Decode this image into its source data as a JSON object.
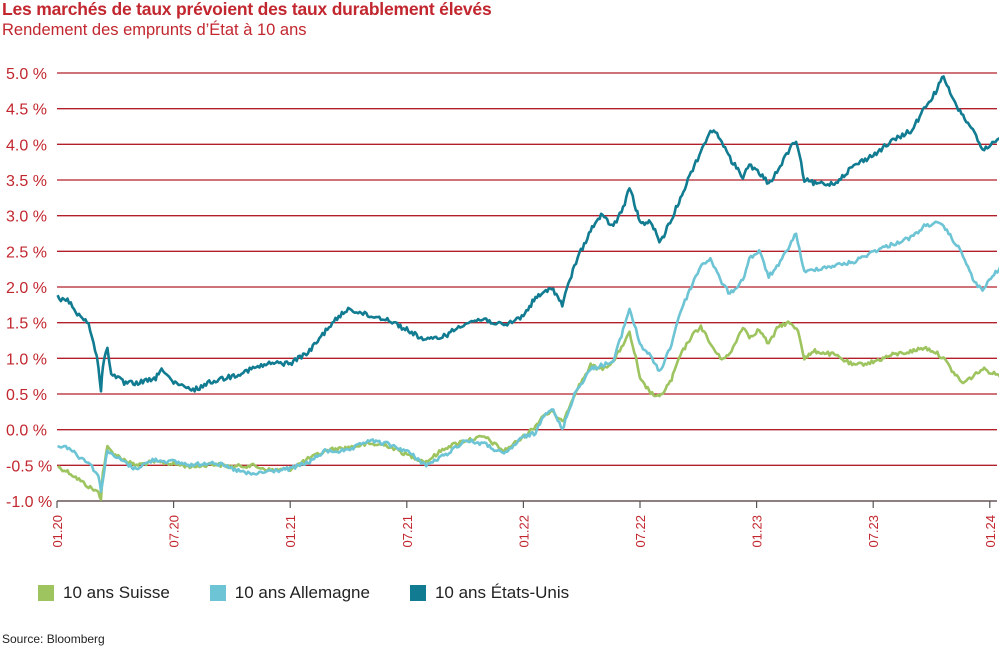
{
  "title": "Les marchés de taux prévoient des taux durablement élevés",
  "subtitle": "Rendement des emprunts d’État à 10 ans",
  "source": "Source: Bloomberg",
  "colors": {
    "title": "#c2262e",
    "grid": "#b21f2a",
    "axis_text": "#c2262e"
  },
  "chart_data": {
    "type": "line",
    "ylim": [
      -1.0,
      5.0
    ],
    "yticks": [
      -1.0,
      -0.5,
      0.0,
      0.5,
      1.0,
      1.5,
      2.0,
      2.5,
      3.0,
      3.5,
      4.0,
      4.5,
      5.0
    ],
    "ytick_labels": [
      "-1.0 %",
      "-0.5 %",
      "0.0 %",
      "0.5 %",
      "1.0 %",
      "1.5 %",
      "2.0 %",
      "2.5 %",
      "3.0 %",
      "3.5 %",
      "4.0 %",
      "4.5 %",
      "5.0 %"
    ],
    "xlim": [
      "2020-01",
      "2024-02"
    ],
    "xticks": [
      "2020-01",
      "2020-07",
      "2021-01",
      "2021-07",
      "2022-01",
      "2022-07",
      "2023-01",
      "2023-07",
      "2024-01"
    ],
    "xtick_labels": [
      "01.20",
      "07.20",
      "01.21",
      "07.21",
      "01.22",
      "07.22",
      "01.23",
      "07.23",
      "01.24"
    ],
    "legend_position": "bottom-left",
    "series": [
      {
        "name": "10 ans Suisse",
        "color": "#9dc45f",
        "points": [
          [
            "2020-01-02",
            -0.52
          ],
          [
            "2020-01-20",
            -0.6
          ],
          [
            "2020-02-05",
            -0.7
          ],
          [
            "2020-02-20",
            -0.8
          ],
          [
            "2020-03-05",
            -0.88
          ],
          [
            "2020-03-09",
            -0.96
          ],
          [
            "2020-03-12",
            -0.6
          ],
          [
            "2020-03-19",
            -0.25
          ],
          [
            "2020-04-01",
            -0.35
          ],
          [
            "2020-04-15",
            -0.42
          ],
          [
            "2020-05-01",
            -0.5
          ],
          [
            "2020-06-01",
            -0.45
          ],
          [
            "2020-07-01",
            -0.48
          ],
          [
            "2020-08-01",
            -0.52
          ],
          [
            "2020-09-01",
            -0.48
          ],
          [
            "2020-10-01",
            -0.52
          ],
          [
            "2020-11-01",
            -0.5
          ],
          [
            "2020-12-01",
            -0.57
          ],
          [
            "2021-01-01",
            -0.55
          ],
          [
            "2021-02-01",
            -0.4
          ],
          [
            "2021-03-01",
            -0.28
          ],
          [
            "2021-04-01",
            -0.25
          ],
          [
            "2021-05-01",
            -0.2
          ],
          [
            "2021-06-01",
            -0.22
          ],
          [
            "2021-07-01",
            -0.35
          ],
          [
            "2021-08-01",
            -0.45
          ],
          [
            "2021-09-01",
            -0.25
          ],
          [
            "2021-10-01",
            -0.15
          ],
          [
            "2021-11-01",
            -0.1
          ],
          [
            "2021-12-01",
            -0.3
          ],
          [
            "2022-01-01",
            -0.1
          ],
          [
            "2022-01-20",
            0.05
          ],
          [
            "2022-02-01",
            0.2
          ],
          [
            "2022-02-15",
            0.25
          ],
          [
            "2022-03-01",
            0.1
          ],
          [
            "2022-03-20",
            0.5
          ],
          [
            "2022-04-15",
            0.9
          ],
          [
            "2022-05-01",
            0.85
          ],
          [
            "2022-05-20",
            0.95
          ],
          [
            "2022-06-05",
            1.2
          ],
          [
            "2022-06-15",
            1.35
          ],
          [
            "2022-06-25",
            1.0
          ],
          [
            "2022-07-01",
            0.7
          ],
          [
            "2022-07-20",
            0.5
          ],
          [
            "2022-08-01",
            0.45
          ],
          [
            "2022-08-20",
            0.7
          ],
          [
            "2022-09-01",
            1.0
          ],
          [
            "2022-09-20",
            1.3
          ],
          [
            "2022-10-05",
            1.45
          ],
          [
            "2022-10-20",
            1.2
          ],
          [
            "2022-11-05",
            1.0
          ],
          [
            "2022-11-20",
            1.05
          ],
          [
            "2022-12-10",
            1.45
          ],
          [
            "2022-12-20",
            1.3
          ],
          [
            "2023-01-05",
            1.4
          ],
          [
            "2023-01-20",
            1.2
          ],
          [
            "2023-02-05",
            1.45
          ],
          [
            "2023-02-20",
            1.5
          ],
          [
            "2023-03-05",
            1.4
          ],
          [
            "2023-03-15",
            1.0
          ],
          [
            "2023-04-01",
            1.1
          ],
          [
            "2023-05-01",
            1.05
          ],
          [
            "2023-06-01",
            0.9
          ],
          [
            "2023-07-01",
            0.95
          ],
          [
            "2023-08-01",
            1.05
          ],
          [
            "2023-09-01",
            1.1
          ],
          [
            "2023-09-20",
            1.15
          ],
          [
            "2023-10-05",
            1.1
          ],
          [
            "2023-10-20",
            1.0
          ],
          [
            "2023-11-05",
            0.8
          ],
          [
            "2023-11-20",
            0.65
          ],
          [
            "2023-12-05",
            0.75
          ],
          [
            "2023-12-20",
            0.85
          ],
          [
            "2024-01-05",
            0.8
          ],
          [
            "2024-01-20",
            0.75
          ],
          [
            "2024-02-01",
            0.78
          ]
        ]
      },
      {
        "name": "10 ans Allemagne",
        "color": "#6cc4d4",
        "points": [
          [
            "2020-01-02",
            -0.22
          ],
          [
            "2020-01-20",
            -0.25
          ],
          [
            "2020-02-05",
            -0.38
          ],
          [
            "2020-02-20",
            -0.45
          ],
          [
            "2020-03-05",
            -0.65
          ],
          [
            "2020-03-09",
            -0.86
          ],
          [
            "2020-03-19",
            -0.28
          ],
          [
            "2020-03-25",
            -0.35
          ],
          [
            "2020-04-15",
            -0.45
          ],
          [
            "2020-05-01",
            -0.55
          ],
          [
            "2020-06-01",
            -0.42
          ],
          [
            "2020-07-01",
            -0.45
          ],
          [
            "2020-08-01",
            -0.5
          ],
          [
            "2020-09-01",
            -0.45
          ],
          [
            "2020-10-01",
            -0.55
          ],
          [
            "2020-11-01",
            -0.63
          ],
          [
            "2020-12-01",
            -0.58
          ],
          [
            "2021-01-01",
            -0.55
          ],
          [
            "2021-02-01",
            -0.45
          ],
          [
            "2021-02-25",
            -0.3
          ],
          [
            "2021-04-01",
            -0.3
          ],
          [
            "2021-05-01",
            -0.15
          ],
          [
            "2021-06-01",
            -0.2
          ],
          [
            "2021-07-01",
            -0.3
          ],
          [
            "2021-08-01",
            -0.5
          ],
          [
            "2021-09-01",
            -0.35
          ],
          [
            "2021-10-01",
            -0.15
          ],
          [
            "2021-11-01",
            -0.2
          ],
          [
            "2021-12-01",
            -0.35
          ],
          [
            "2022-01-01",
            -0.1
          ],
          [
            "2022-01-20",
            -0.05
          ],
          [
            "2022-02-01",
            0.2
          ],
          [
            "2022-02-15",
            0.3
          ],
          [
            "2022-03-01",
            0.0
          ],
          [
            "2022-03-20",
            0.5
          ],
          [
            "2022-04-15",
            0.85
          ],
          [
            "2022-05-01",
            0.9
          ],
          [
            "2022-05-20",
            0.95
          ],
          [
            "2022-06-05",
            1.4
          ],
          [
            "2022-06-15",
            1.7
          ],
          [
            "2022-06-25",
            1.4
          ],
          [
            "2022-07-01",
            1.2
          ],
          [
            "2022-07-20",
            1.0
          ],
          [
            "2022-08-01",
            0.8
          ],
          [
            "2022-08-20",
            1.2
          ],
          [
            "2022-09-01",
            1.6
          ],
          [
            "2022-09-20",
            2.0
          ],
          [
            "2022-10-05",
            2.3
          ],
          [
            "2022-10-20",
            2.4
          ],
          [
            "2022-11-05",
            2.1
          ],
          [
            "2022-11-20",
            1.9
          ],
          [
            "2022-12-10",
            2.1
          ],
          [
            "2022-12-20",
            2.4
          ],
          [
            "2023-01-05",
            2.5
          ],
          [
            "2023-01-20",
            2.15
          ],
          [
            "2023-02-05",
            2.3
          ],
          [
            "2023-02-20",
            2.55
          ],
          [
            "2023-03-02",
            2.75
          ],
          [
            "2023-03-15",
            2.2
          ],
          [
            "2023-04-01",
            2.25
          ],
          [
            "2023-05-01",
            2.3
          ],
          [
            "2023-06-01",
            2.35
          ],
          [
            "2023-07-01",
            2.5
          ],
          [
            "2023-08-01",
            2.6
          ],
          [
            "2023-09-01",
            2.7
          ],
          [
            "2023-09-20",
            2.85
          ],
          [
            "2023-10-05",
            2.9
          ],
          [
            "2023-10-20",
            2.85
          ],
          [
            "2023-11-05",
            2.65
          ],
          [
            "2023-11-20",
            2.45
          ],
          [
            "2023-12-05",
            2.1
          ],
          [
            "2023-12-20",
            1.95
          ],
          [
            "2024-01-05",
            2.15
          ],
          [
            "2024-01-20",
            2.3
          ],
          [
            "2024-02-01",
            2.45
          ]
        ]
      },
      {
        "name": "10 ans États-Unis",
        "color": "#117c91",
        "points": [
          [
            "2020-01-02",
            1.85
          ],
          [
            "2020-01-20",
            1.8
          ],
          [
            "2020-02-05",
            1.6
          ],
          [
            "2020-02-20",
            1.5
          ],
          [
            "2020-03-05",
            0.9
          ],
          [
            "2020-03-09",
            0.55
          ],
          [
            "2020-03-12",
            0.9
          ],
          [
            "2020-03-19",
            1.15
          ],
          [
            "2020-03-25",
            0.8
          ],
          [
            "2020-04-15",
            0.65
          ],
          [
            "2020-05-01",
            0.65
          ],
          [
            "2020-06-01",
            0.7
          ],
          [
            "2020-06-15",
            0.85
          ],
          [
            "2020-07-01",
            0.65
          ],
          [
            "2020-08-01",
            0.55
          ],
          [
            "2020-09-01",
            0.68
          ],
          [
            "2020-10-01",
            0.75
          ],
          [
            "2020-11-01",
            0.85
          ],
          [
            "2020-12-01",
            0.93
          ],
          [
            "2021-01-01",
            0.93
          ],
          [
            "2021-02-01",
            1.1
          ],
          [
            "2021-03-01",
            1.45
          ],
          [
            "2021-03-31",
            1.7
          ],
          [
            "2021-05-01",
            1.6
          ],
          [
            "2021-06-01",
            1.55
          ],
          [
            "2021-07-01",
            1.4
          ],
          [
            "2021-08-01",
            1.25
          ],
          [
            "2021-09-01",
            1.32
          ],
          [
            "2021-10-01",
            1.5
          ],
          [
            "2021-11-01",
            1.55
          ],
          [
            "2021-12-01",
            1.45
          ],
          [
            "2022-01-01",
            1.6
          ],
          [
            "2022-01-20",
            1.85
          ],
          [
            "2022-02-01",
            1.9
          ],
          [
            "2022-02-15",
            2.0
          ],
          [
            "2022-03-01",
            1.75
          ],
          [
            "2022-03-20",
            2.3
          ],
          [
            "2022-04-15",
            2.8
          ],
          [
            "2022-05-01",
            3.0
          ],
          [
            "2022-05-20",
            2.85
          ],
          [
            "2022-06-05",
            3.1
          ],
          [
            "2022-06-15",
            3.4
          ],
          [
            "2022-06-25",
            3.1
          ],
          [
            "2022-07-01",
            2.9
          ],
          [
            "2022-07-20",
            2.9
          ],
          [
            "2022-08-01",
            2.6
          ],
          [
            "2022-08-20",
            2.95
          ],
          [
            "2022-09-01",
            3.2
          ],
          [
            "2022-09-20",
            3.6
          ],
          [
            "2022-10-05",
            3.9
          ],
          [
            "2022-10-20",
            4.2
          ],
          [
            "2022-11-05",
            4.1
          ],
          [
            "2022-11-20",
            3.8
          ],
          [
            "2022-12-10",
            3.55
          ],
          [
            "2022-12-20",
            3.7
          ],
          [
            "2023-01-05",
            3.6
          ],
          [
            "2023-01-20",
            3.45
          ],
          [
            "2023-02-05",
            3.65
          ],
          [
            "2023-02-20",
            3.9
          ],
          [
            "2023-03-02",
            4.05
          ],
          [
            "2023-03-15",
            3.5
          ],
          [
            "2023-04-01",
            3.45
          ],
          [
            "2023-05-01",
            3.45
          ],
          [
            "2023-06-01",
            3.7
          ],
          [
            "2023-07-01",
            3.85
          ],
          [
            "2023-08-01",
            4.05
          ],
          [
            "2023-09-01",
            4.2
          ],
          [
            "2023-09-20",
            4.5
          ],
          [
            "2023-10-05",
            4.7
          ],
          [
            "2023-10-20",
            4.95
          ],
          [
            "2023-11-05",
            4.6
          ],
          [
            "2023-11-20",
            4.4
          ],
          [
            "2023-12-05",
            4.2
          ],
          [
            "2023-12-20",
            3.9
          ],
          [
            "2024-01-05",
            4.0
          ],
          [
            "2024-01-20",
            4.1
          ],
          [
            "2024-02-01",
            4.25
          ]
        ]
      }
    ]
  }
}
